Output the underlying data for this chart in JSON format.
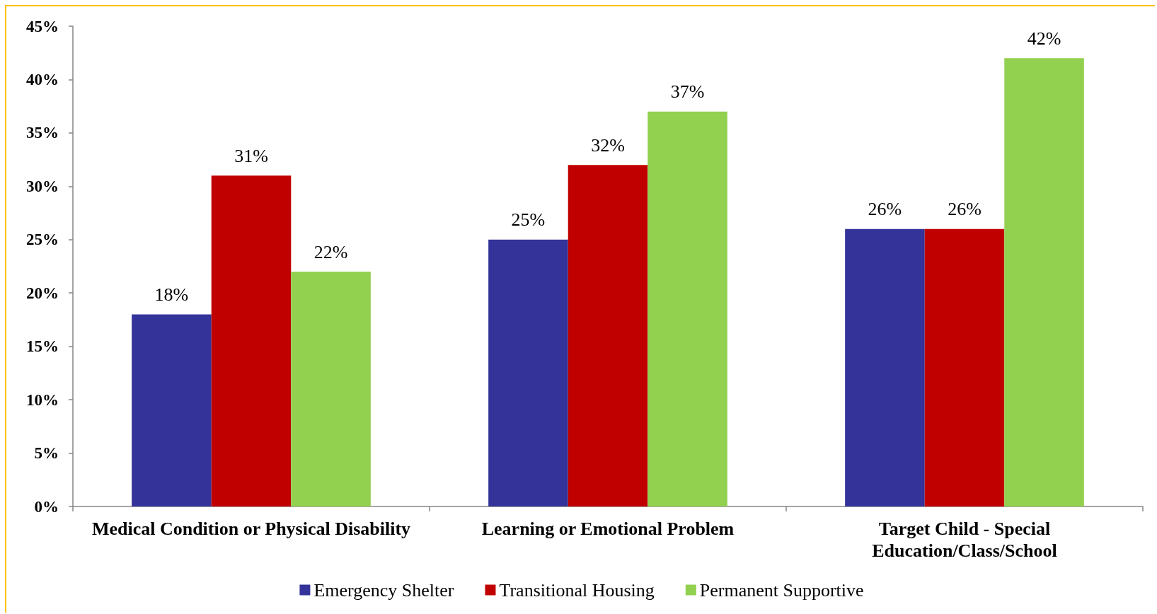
{
  "chart_data": {
    "type": "bar",
    "categories": [
      "Medical Condition or Physical Disability",
      "Learning or Emotional Problem",
      "Target Child - Special\nEducation/Class/School"
    ],
    "series": [
      {
        "name": "Emergency Shelter",
        "color": "#333399",
        "values": [
          18,
          25,
          26
        ],
        "value_labels": [
          "18%",
          "25%",
          "26%"
        ]
      },
      {
        "name": "Transitional Housing",
        "color": "#c00000",
        "values": [
          31,
          32,
          26
        ],
        "value_labels": [
          "31%",
          "32%",
          "26%"
        ]
      },
      {
        "name": "Permanent Supportive",
        "color": "#92d050",
        "values": [
          22,
          37,
          42
        ],
        "value_labels": [
          "22%",
          "37%",
          "42%"
        ]
      }
    ],
    "ylim": [
      0,
      45
    ],
    "yticks": [
      {
        "value": 0,
        "label": "0%"
      },
      {
        "value": 5,
        "label": "5%"
      },
      {
        "value": 10,
        "label": "10%"
      },
      {
        "value": 15,
        "label": "15%"
      },
      {
        "value": 20,
        "label": "20%"
      },
      {
        "value": 25,
        "label": "25%"
      },
      {
        "value": 30,
        "label": "30%"
      },
      {
        "value": 35,
        "label": "35%"
      },
      {
        "value": 40,
        "label": "40%"
      },
      {
        "value": 45,
        "label": "45%"
      }
    ],
    "legend": "bottom"
  }
}
